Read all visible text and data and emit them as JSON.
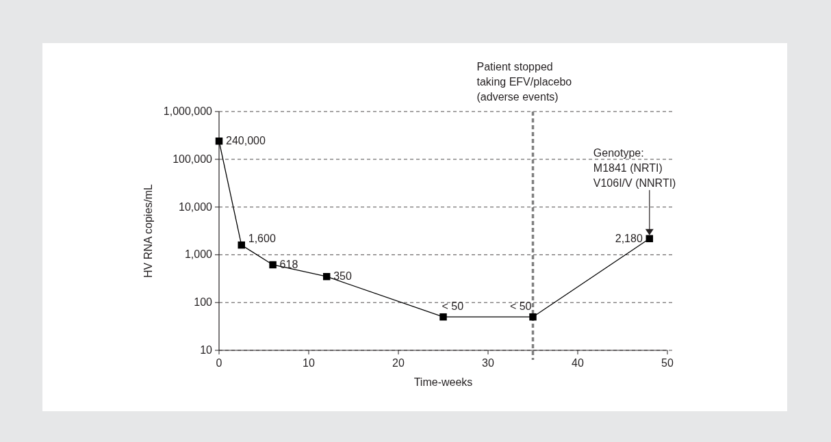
{
  "chart_data": {
    "type": "line",
    "xlabel": "Time-weeks",
    "ylabel": "HV RNA copies/mL",
    "x": [
      0,
      2.5,
      6,
      12,
      25,
      35,
      48
    ],
    "series": [
      {
        "color": "#000000",
        "values": [
          240000,
          1600,
          618,
          350,
          50,
          50,
          2180
        ],
        "value_labels": [
          "240,000",
          "1,600",
          "618",
          "350",
          "< 50",
          "< 50",
          "2,180"
        ]
      }
    ],
    "xlim": [
      0,
      50
    ],
    "xticks": [
      0,
      10,
      20,
      30,
      40,
      50
    ],
    "ylim": [
      10,
      1000000
    ],
    "yticks": [
      {
        "value": 10,
        "label": "10"
      },
      {
        "value": 100,
        "label": "100"
      },
      {
        "value": 1000,
        "label": "1,000"
      },
      {
        "value": 10000,
        "label": "10,000"
      },
      {
        "value": 100000,
        "label": "100,000"
      },
      {
        "value": 1000000,
        "label": "1,000,000"
      }
    ],
    "log": "y",
    "grid": "y",
    "marker": "square",
    "line_style": "solid",
    "ref_lines": [
      {
        "axis": "x",
        "value": 35,
        "label": "Patient stopped\ntaking EFV/placebo\n(adverse events)",
        "color": "#808080",
        "line_style": "dashed"
      }
    ],
    "annotations": [
      "Genotype:\nM1841 (NRTI)\nV106I/V (NNRTI)"
    ]
  }
}
